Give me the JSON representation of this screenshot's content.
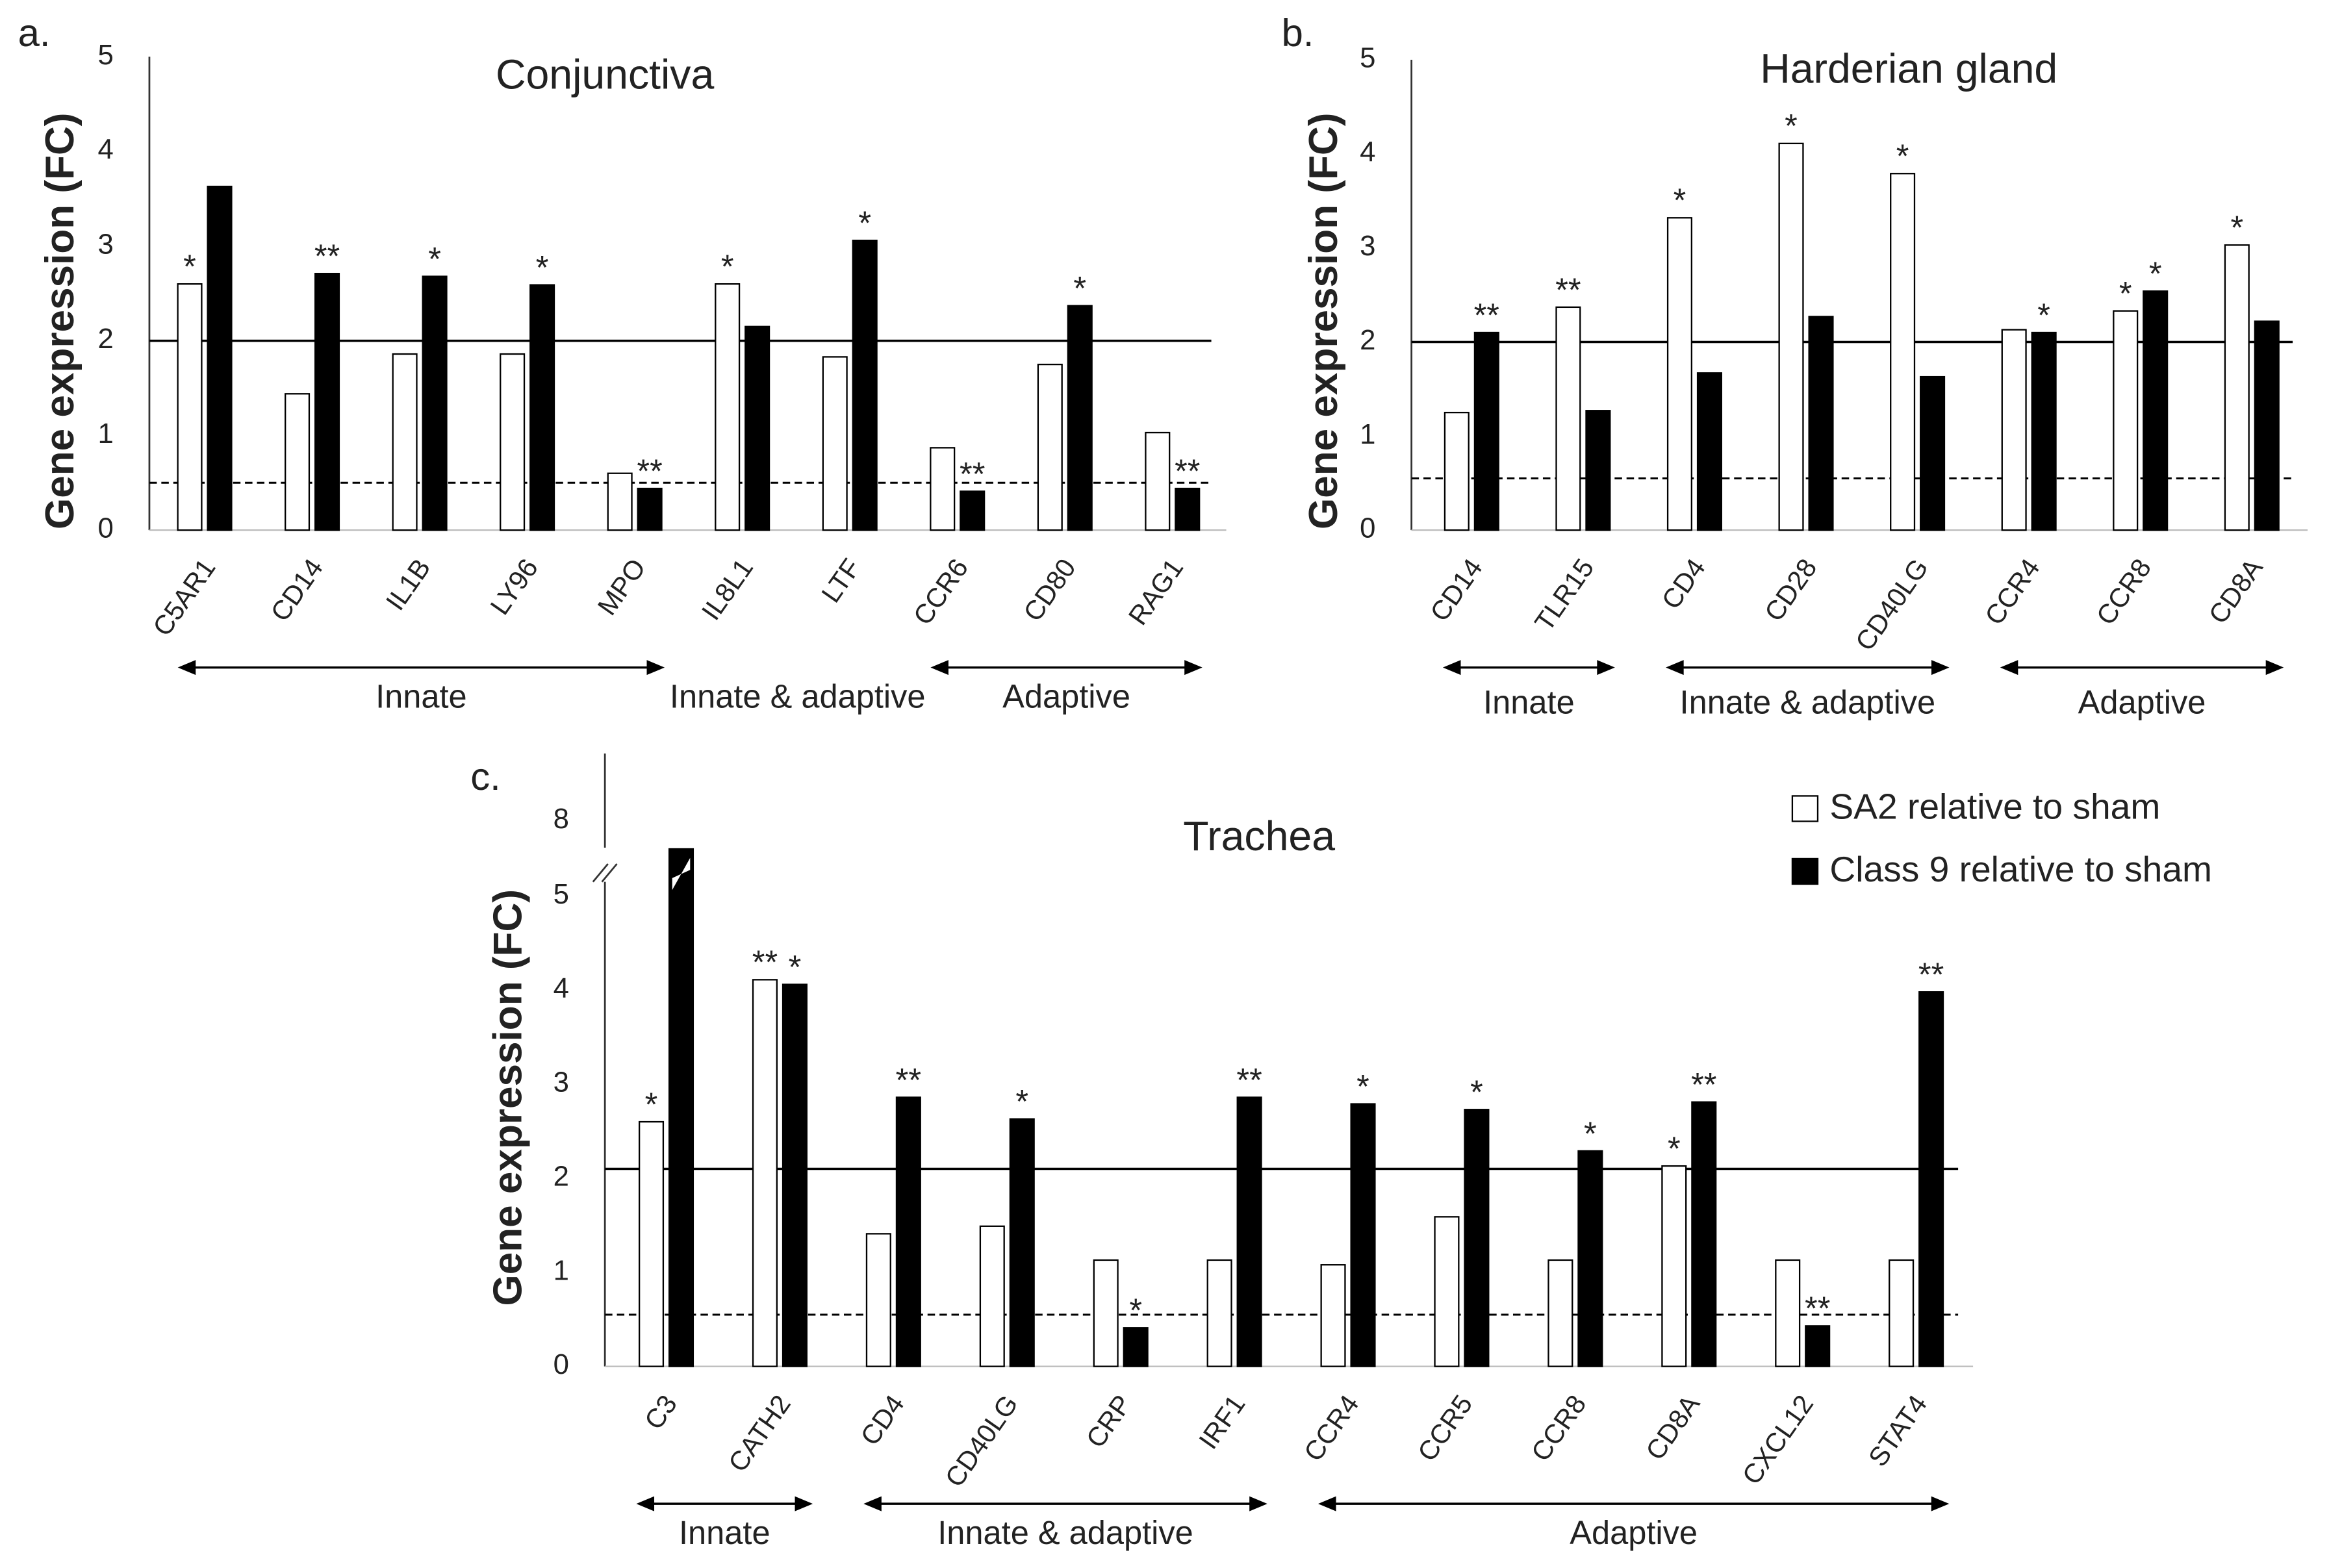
{
  "chart_data": [
    {
      "type": "bar",
      "panel": "a.",
      "title": "Conjunctiva",
      "ylabel": "Gene expression (FC)",
      "categories": [
        "C5AR1",
        "CD14",
        "IL1B",
        "LY96",
        "MPO",
        "IL8L1",
        "LTF",
        "CCR6",
        "CD80",
        "RAG1"
      ],
      "series": [
        {
          "color": "#ffffff",
          "values": [
            2.6,
            1.44,
            1.86,
            1.86,
            0.6,
            2.6,
            1.83,
            0.87,
            1.75,
            1.03
          ],
          "annotations": [
            "*",
            null,
            null,
            null,
            null,
            "*",
            null,
            null,
            null,
            null
          ]
        },
        {
          "color": "#000000",
          "values": [
            3.63,
            2.71,
            2.68,
            2.59,
            0.44,
            2.15,
            3.06,
            0.41,
            2.37,
            0.44
          ],
          "annotations": [
            null,
            "**",
            "*",
            "*",
            "**",
            null,
            "*",
            "**",
            "*",
            "**"
          ]
        }
      ],
      "ylim": [
        0,
        5
      ],
      "yticks": [
        0,
        1,
        2,
        3,
        4,
        5
      ],
      "reference_lines": [
        {
          "value": 2,
          "style": "solid"
        },
        {
          "value": 0.5,
          "style": "dashed"
        }
      ],
      "groups": [
        {
          "label": "Innate",
          "start": 0,
          "end": 4,
          "arrow": true
        },
        {
          "label": "Innate & adaptive",
          "start": 5,
          "end": 6,
          "arrow": false
        },
        {
          "label": "Adaptive",
          "start": 7,
          "end": 9,
          "arrow": true
        }
      ]
    },
    {
      "type": "bar",
      "panel": "b.",
      "title": "Harderian gland",
      "ylabel": "Gene expression (FC)",
      "categories": [
        "CD14",
        "TLR15",
        "CD4",
        "CD28",
        "CD40LG",
        "CCR4",
        "CCR8",
        "CD8A"
      ],
      "series": [
        {
          "color": "#ffffff",
          "values": [
            1.25,
            2.37,
            3.32,
            4.11,
            3.79,
            2.13,
            2.33,
            3.03
          ],
          "annotations": [
            null,
            "**",
            "*",
            "*",
            "*",
            null,
            "*",
            "*"
          ]
        },
        {
          "color": "#000000",
          "values": [
            2.1,
            1.27,
            1.67,
            2.27,
            1.63,
            2.1,
            2.54,
            2.22
          ],
          "annotations": [
            "**",
            null,
            null,
            null,
            null,
            "*",
            "*",
            null
          ]
        }
      ],
      "ylim": [
        0,
        5
      ],
      "yticks": [
        0,
        1,
        2,
        3,
        4,
        5
      ],
      "reference_lines": [
        {
          "value": 2,
          "style": "solid"
        },
        {
          "value": 0.55,
          "style": "dashed"
        }
      ],
      "groups": [
        {
          "label": "Innate",
          "start": 0,
          "end": 1,
          "arrow": true
        },
        {
          "label": "Innate & adaptive",
          "start": 2,
          "end": 4,
          "arrow": true
        },
        {
          "label": "Adaptive",
          "start": 5,
          "end": 7,
          "arrow": true
        }
      ]
    },
    {
      "type": "bar",
      "panel": "c.",
      "title": "Trachea",
      "ylabel": "Gene expression (FC)",
      "categories": [
        "C3",
        "CATH2",
        "CD4",
        "CD40LG",
        "CRP",
        "IRF1",
        "CCR4",
        "CCR5",
        "CCR8",
        "CD8A",
        "CXCL12",
        "STAT4"
      ],
      "series": [
        {
          "name": "SA2 relative to sham",
          "color": "#ffffff",
          "values": [
            2.6,
            4.11,
            1.41,
            1.49,
            1.13,
            1.13,
            1.08,
            1.59,
            1.13,
            2.13,
            1.13,
            1.13
          ],
          "annotations": [
            "*",
            "**",
            null,
            null,
            null,
            null,
            null,
            null,
            null,
            "*",
            null,
            null
          ]
        },
        {
          "name": "Class 9 relative to sham",
          "color": "#000000",
          "values": [
            7.7,
            4.06,
            2.86,
            2.63,
            0.41,
            2.86,
            2.79,
            2.73,
            2.29,
            2.81,
            0.43,
            3.98
          ],
          "annotations": [
            null,
            "*",
            "**",
            "*",
            "*",
            "**",
            "*",
            "*",
            "*",
            "**",
            "**",
            "**"
          ]
        }
      ],
      "ylim": [
        0,
        8
      ],
      "yticks": [
        0,
        1,
        2,
        3,
        4,
        5,
        8
      ],
      "ybreak": [
        5.5,
        7.7
      ],
      "reference_lines": [
        {
          "value": 2.1,
          "style": "solid"
        },
        {
          "value": 0.55,
          "style": "dashed"
        }
      ],
      "legend": "upper right",
      "groups": [
        {
          "label": "Innate",
          "start": 0,
          "end": 1,
          "arrow": true
        },
        {
          "label": "Innate & adaptive",
          "start": 2,
          "end": 5,
          "arrow": true
        },
        {
          "label": "Adaptive",
          "start": 6,
          "end": 11,
          "arrow": true
        }
      ]
    }
  ]
}
